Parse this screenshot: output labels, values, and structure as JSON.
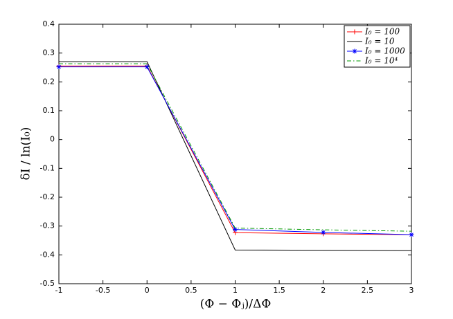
{
  "chart_data": {
    "type": "line",
    "xlabel": "(Φ − Φⱼ)/ΔΦ",
    "ylabel": "δI / ln(I₀)",
    "x": [
      -1,
      0,
      1,
      2,
      3
    ],
    "series": [
      {
        "name": "I₀ = 100",
        "color": "#ff0000",
        "marker": "+",
        "dash": "solid",
        "values": [
          0.255,
          0.255,
          -0.323,
          -0.327,
          -0.33
        ]
      },
      {
        "name": "I₀ = 10",
        "color": "#000000",
        "marker": "none",
        "dash": "solid",
        "values": [
          0.27,
          0.27,
          -0.383,
          -0.384,
          -0.385
        ]
      },
      {
        "name": "I₀ = 1000",
        "color": "#0000ff",
        "marker": "*",
        "dash": "solid",
        "values": [
          0.252,
          0.252,
          -0.312,
          -0.322,
          -0.33
        ]
      },
      {
        "name": "I₀ = 10⁴",
        "color": "#009900",
        "marker": "none",
        "dash": "dashdot",
        "values": [
          0.263,
          0.263,
          -0.307,
          -0.313,
          -0.318
        ]
      }
    ],
    "xlim": [
      -1,
      3
    ],
    "xticks": [
      -1,
      -0.5,
      0,
      0.5,
      1,
      1.5,
      2,
      2.5,
      3
    ],
    "ylim": [
      -0.5,
      0.4
    ],
    "yticks": [
      -0.5,
      -0.4,
      -0.3,
      -0.2,
      -0.1,
      0,
      0.1,
      0.2,
      0.3,
      0.4
    ],
    "legend": "upper right",
    "grid": false
  }
}
